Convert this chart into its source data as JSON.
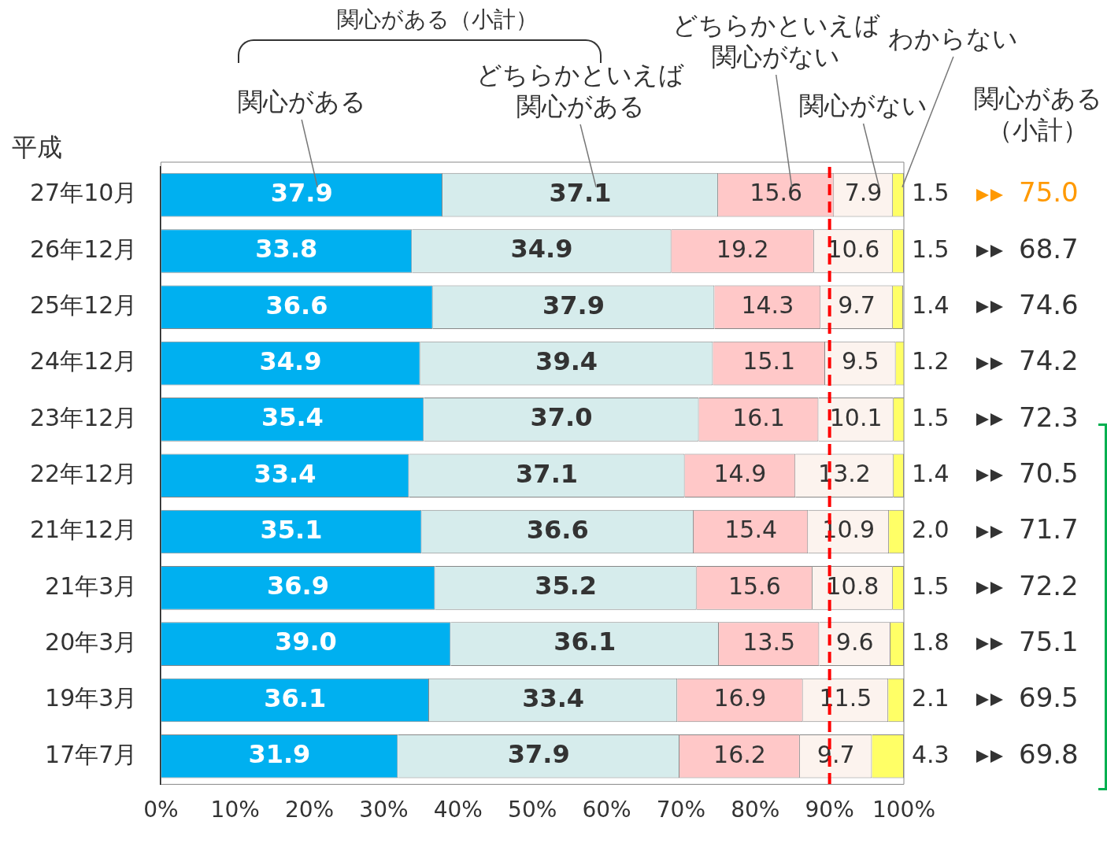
{
  "chart_data": {
    "type": "bar",
    "orientation": "horizontal",
    "stacked": true,
    "legend": false,
    "grid": false,
    "categories": [
      "27年10月",
      "26年12月",
      "25年12月",
      "24年12月",
      "23年12月",
      "22年12月",
      "21年12月",
      "21年3月",
      "20年3月",
      "19年3月",
      "17年7月"
    ],
    "series": [
      {
        "name": "関心がある",
        "color": "#00b0f0",
        "values": [
          37.9,
          33.8,
          36.6,
          34.9,
          35.4,
          33.4,
          35.1,
          36.9,
          39.0,
          36.1,
          31.9
        ],
        "value_labels": [
          "37.9",
          "33.8",
          "36.6",
          "34.9",
          "35.4",
          "33.4",
          "35.1",
          "36.9",
          "39.0",
          "36.1",
          "31.9"
        ]
      },
      {
        "name": "どちらかといえば関心がある",
        "color": "#d6ecec",
        "values": [
          37.1,
          34.9,
          37.9,
          39.4,
          37.0,
          37.1,
          36.6,
          35.2,
          36.1,
          33.4,
          37.9
        ],
        "value_labels": [
          "37.1",
          "34.9",
          "37.9",
          "39.4",
          "37.0",
          "37.1",
          "36.6",
          "35.2",
          "36.1",
          "33.4",
          "37.9"
        ]
      },
      {
        "name": "どちらかといえば関心がない",
        "color": "#ffc8c8",
        "values": [
          15.6,
          19.2,
          14.3,
          15.1,
          16.1,
          14.9,
          15.4,
          15.6,
          13.5,
          16.9,
          16.2
        ],
        "value_labels": [
          "15.6",
          "19.2",
          "14.3",
          "15.1",
          "16.1",
          "14.9",
          "15.4",
          "15.6",
          "13.5",
          "16.9",
          "16.2"
        ]
      },
      {
        "name": "関心がない",
        "color": "#fcf3ee",
        "values": [
          7.9,
          10.6,
          9.7,
          9.5,
          10.1,
          13.2,
          10.9,
          10.8,
          9.6,
          11.5,
          9.7
        ],
        "value_labels": [
          "7.9",
          "10.6",
          "9.7",
          "9.5",
          "10.1",
          "13.2",
          "10.9",
          "10.8",
          "9.6",
          "11.5",
          "9.7"
        ]
      },
      {
        "name": "わからない",
        "color": "#ffff66",
        "values": [
          1.5,
          1.5,
          1.4,
          1.2,
          1.5,
          1.4,
          2.0,
          1.5,
          1.8,
          2.1,
          4.3
        ],
        "value_labels": [
          "1.5",
          "1.5",
          "1.4",
          "1.2",
          "1.5",
          "1.4",
          "2.0",
          "1.5",
          "1.8",
          "2.1",
          "4.3"
        ]
      }
    ],
    "xlim": [
      0,
      100
    ],
    "xticks": [
      {
        "value": 0,
        "label": "0%"
      },
      {
        "value": 10,
        "label": "10%"
      },
      {
        "value": 20,
        "label": "20%"
      },
      {
        "value": 30,
        "label": "30%"
      },
      {
        "value": 40,
        "label": "40%"
      },
      {
        "value": 50,
        "label": "50%"
      },
      {
        "value": 60,
        "label": "60%"
      },
      {
        "value": 70,
        "label": "70%"
      },
      {
        "value": 80,
        "label": "80%"
      },
      {
        "value": 90,
        "label": "90%"
      },
      {
        "value": 100,
        "label": "100%"
      }
    ],
    "ref_lines": [
      {
        "axis": "x",
        "value": 90,
        "color": "#ff0000",
        "line_style": "dashed"
      }
    ],
    "annotations": [
      "平成",
      "関心がある（小計）",
      "関心がある（小計）",
      "75.0",
      "68.7",
      "74.6",
      "74.2",
      "72.3",
      "70.5",
      "71.7",
      "72.2",
      "75.1",
      "69.5",
      "69.8"
    ]
  }
}
